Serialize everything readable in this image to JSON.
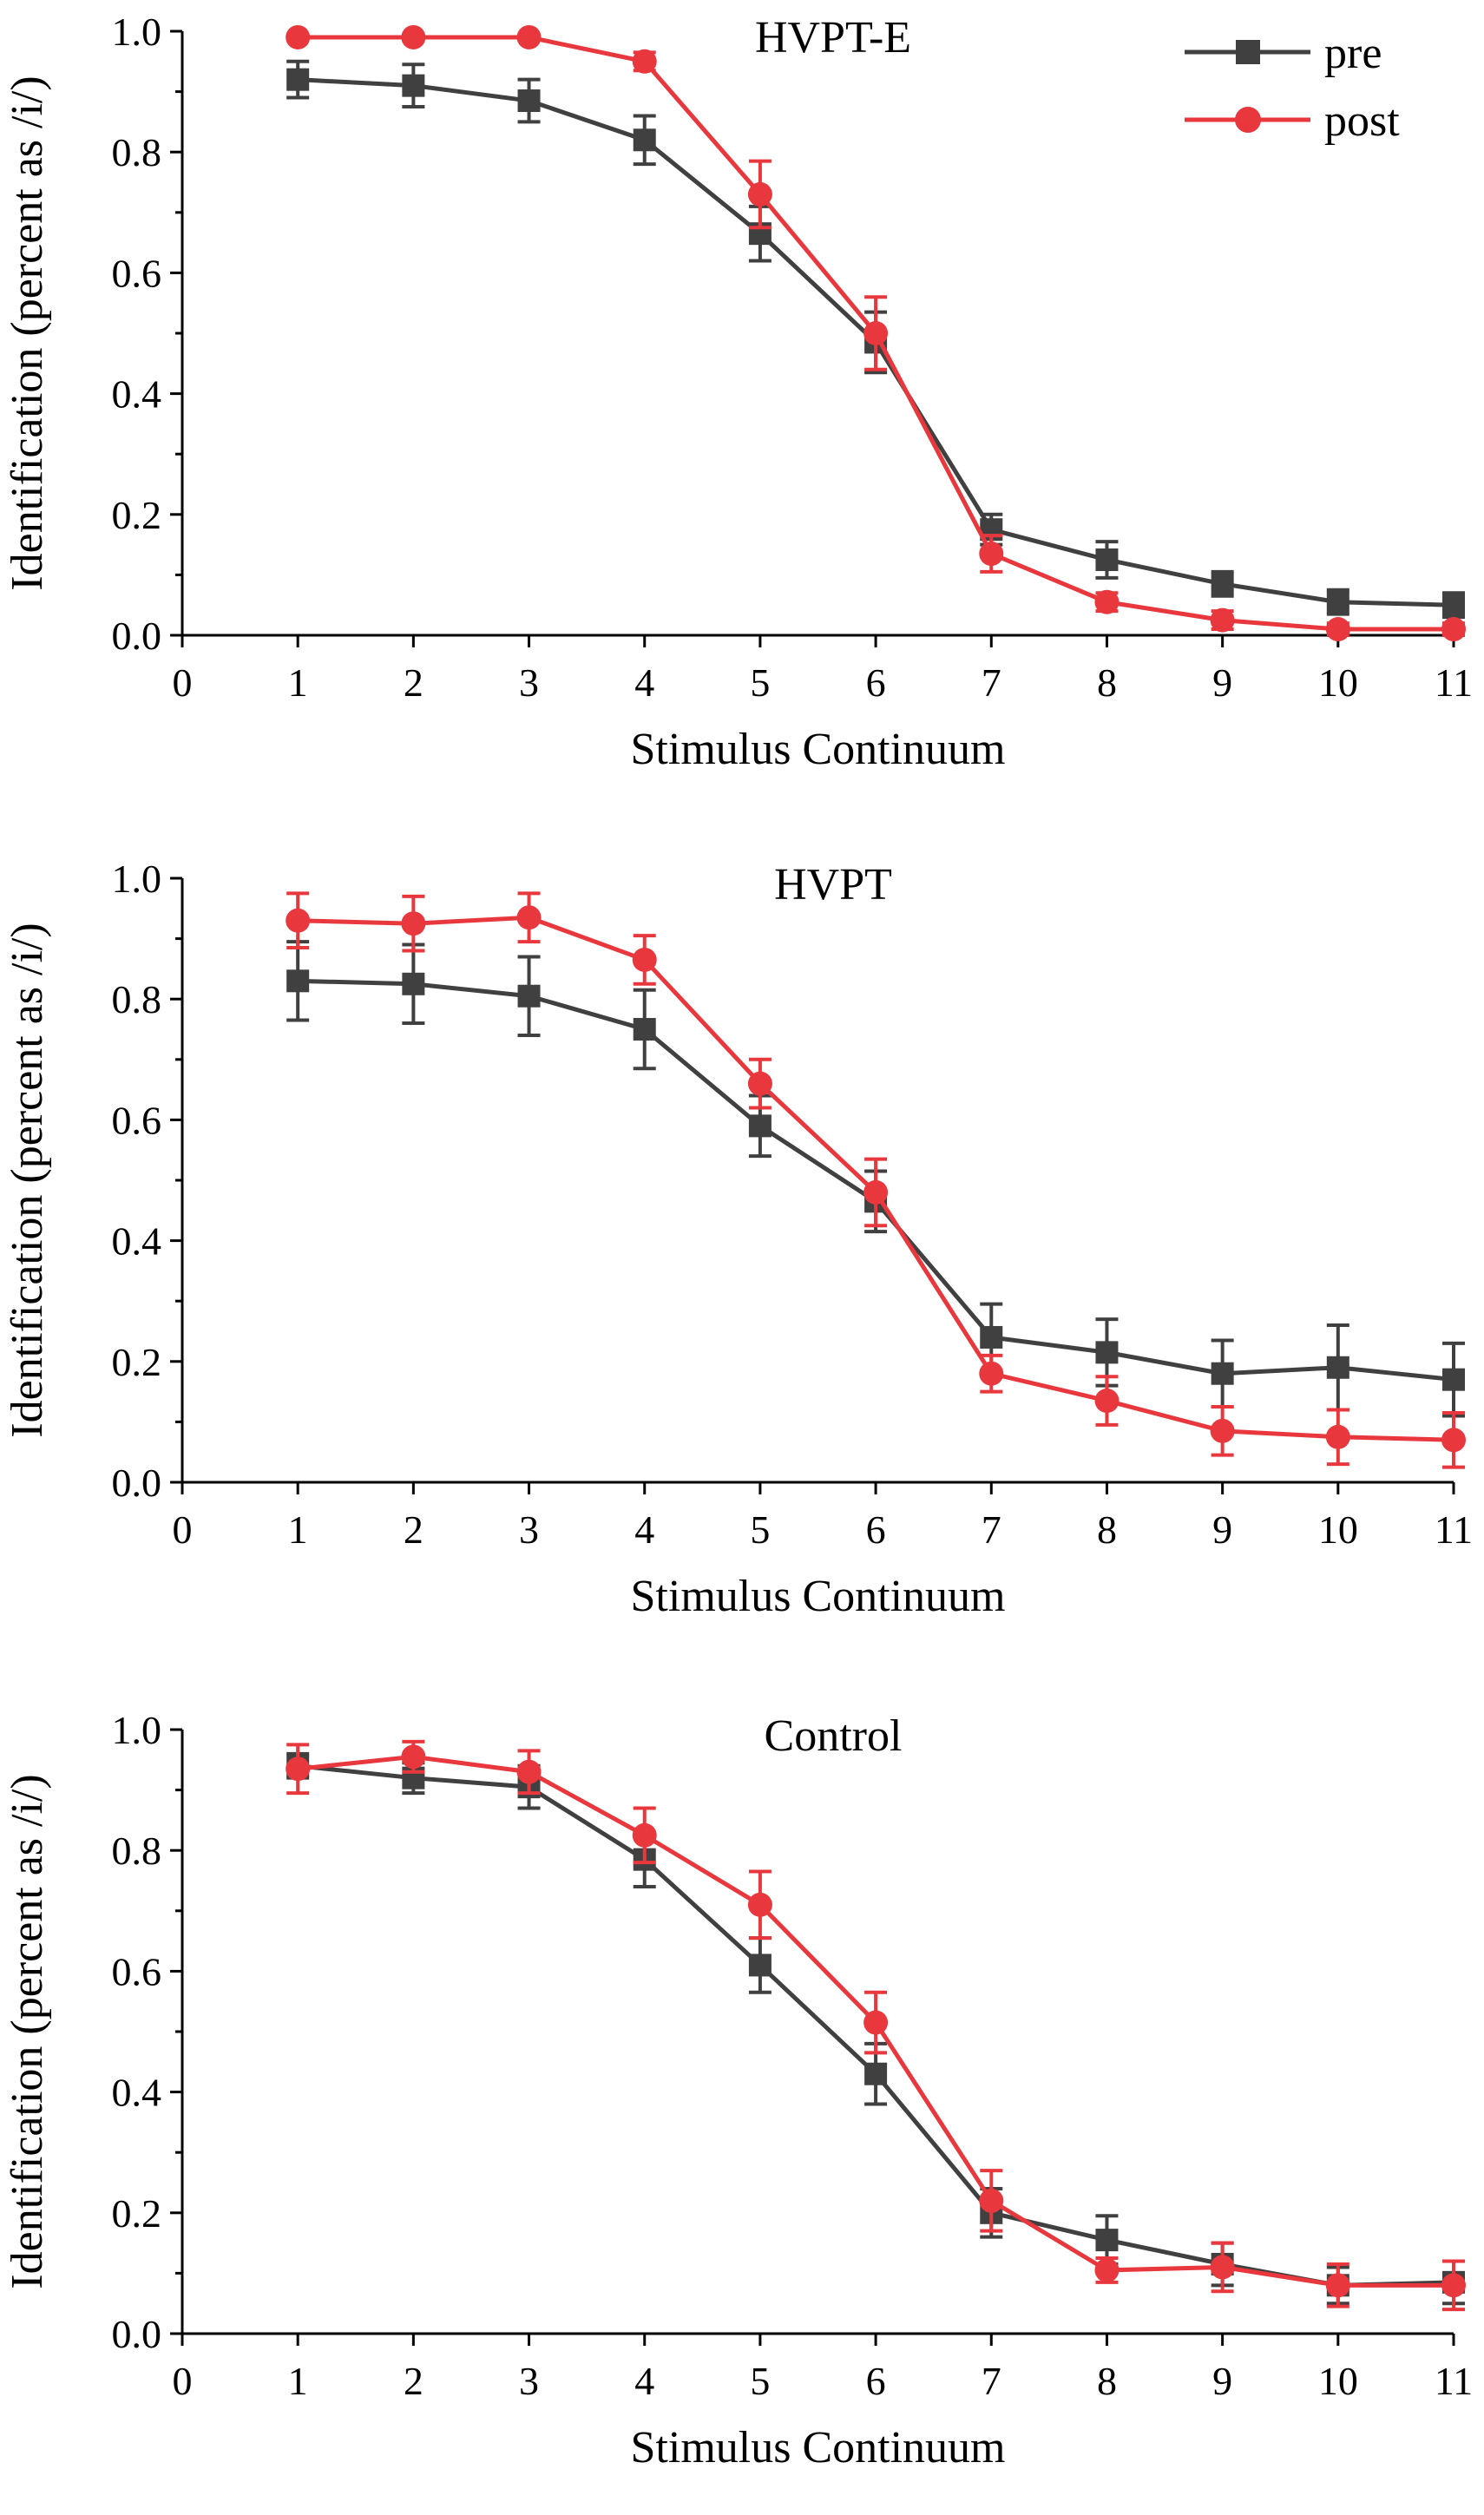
{
  "chart_data": [
    {
      "type": "line",
      "title": "HVPT-E",
      "xlabel": "Stimulus Continuum",
      "ylabel": "Identification (percent as /i/)",
      "xlim": [
        0,
        11
      ],
      "ylim": [
        0,
        1.0
      ],
      "xticks": [
        "0",
        "1",
        "2",
        "3",
        "4",
        "5",
        "6",
        "7",
        "8",
        "9",
        "10",
        "11"
      ],
      "yticks": [
        "0.0",
        "0.2",
        "0.4",
        "0.6",
        "0.8",
        "1.0"
      ],
      "legend": {
        "position": "top-right",
        "entries": [
          "pre",
          "post"
        ]
      },
      "x": [
        1,
        2,
        3,
        4,
        5,
        6,
        7,
        8,
        9,
        10,
        11
      ],
      "series": [
        {
          "name": "pre",
          "color": "#404040",
          "marker": "square",
          "values": [
            0.92,
            0.91,
            0.885,
            0.82,
            0.665,
            0.485,
            0.175,
            0.125,
            0.085,
            0.055,
            0.05
          ],
          "errors": [
            0.03,
            0.035,
            0.035,
            0.04,
            0.045,
            0.05,
            0.025,
            0.03,
            0.02,
            0.02,
            0.02
          ]
        },
        {
          "name": "post",
          "color": "#e8383d",
          "marker": "circle",
          "values": [
            0.99,
            0.99,
            0.99,
            0.95,
            0.73,
            0.5,
            0.135,
            0.055,
            0.025,
            0.01,
            0.01
          ],
          "errors": [
            0.005,
            0.005,
            0.005,
            0.015,
            0.055,
            0.06,
            0.03,
            0.015,
            0.015,
            0.01,
            0.01
          ]
        }
      ]
    },
    {
      "type": "line",
      "title": "HVPT",
      "xlabel": "Stimulus Continuum",
      "ylabel": "Identification (percent as /i/)",
      "xlim": [
        0,
        11
      ],
      "ylim": [
        0,
        1.0
      ],
      "xticks": [
        "0",
        "1",
        "2",
        "3",
        "4",
        "5",
        "6",
        "7",
        "8",
        "9",
        "10",
        "11"
      ],
      "yticks": [
        "0.0",
        "0.2",
        "0.4",
        "0.6",
        "0.8",
        "1.0"
      ],
      "x": [
        1,
        2,
        3,
        4,
        5,
        6,
        7,
        8,
        9,
        10,
        11
      ],
      "series": [
        {
          "name": "pre",
          "color": "#404040",
          "marker": "square",
          "values": [
            0.83,
            0.825,
            0.805,
            0.75,
            0.59,
            0.465,
            0.24,
            0.215,
            0.18,
            0.19,
            0.17
          ],
          "errors": [
            0.065,
            0.065,
            0.065,
            0.065,
            0.05,
            0.05,
            0.055,
            0.055,
            0.055,
            0.07,
            0.06
          ]
        },
        {
          "name": "post",
          "color": "#e8383d",
          "marker": "circle",
          "values": [
            0.93,
            0.925,
            0.935,
            0.865,
            0.66,
            0.48,
            0.18,
            0.135,
            0.085,
            0.075,
            0.07
          ],
          "errors": [
            0.045,
            0.045,
            0.04,
            0.04,
            0.04,
            0.055,
            0.03,
            0.04,
            0.04,
            0.045,
            0.045
          ]
        }
      ]
    },
    {
      "type": "line",
      "title": "Control",
      "xlabel": "Stimulus Continuum",
      "ylabel": "Identification (percent as /i/)",
      "xlim": [
        0,
        11
      ],
      "ylim": [
        0,
        1.0
      ],
      "xticks": [
        "0",
        "1",
        "2",
        "3",
        "4",
        "5",
        "6",
        "7",
        "8",
        "9",
        "10",
        "11"
      ],
      "yticks": [
        "0.0",
        "0.2",
        "0.4",
        "0.6",
        "0.8",
        "1.0"
      ],
      "x": [
        1,
        2,
        3,
        4,
        5,
        6,
        7,
        8,
        9,
        10,
        11
      ],
      "series": [
        {
          "name": "pre",
          "color": "#404040",
          "marker": "square",
          "values": [
            0.94,
            0.92,
            0.905,
            0.785,
            0.61,
            0.43,
            0.2,
            0.155,
            0.115,
            0.08,
            0.085
          ],
          "errors": [
            0.02,
            0.025,
            0.035,
            0.045,
            0.045,
            0.05,
            0.04,
            0.04,
            0.035,
            0.03,
            0.035
          ]
        },
        {
          "name": "post",
          "color": "#e8383d",
          "marker": "circle",
          "values": [
            0.935,
            0.955,
            0.93,
            0.825,
            0.71,
            0.515,
            0.22,
            0.105,
            0.11,
            0.08,
            0.08
          ],
          "errors": [
            0.04,
            0.025,
            0.035,
            0.045,
            0.055,
            0.05,
            0.05,
            0.02,
            0.04,
            0.035,
            0.04
          ]
        }
      ]
    }
  ]
}
